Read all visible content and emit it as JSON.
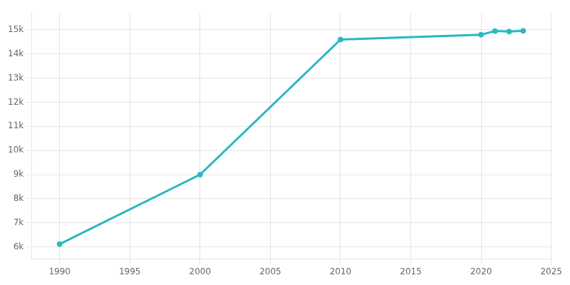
{
  "chart_data": {
    "type": "line",
    "x": [
      1990,
      2000,
      2010,
      2020,
      2021,
      2022,
      2023
    ],
    "values": [
      6120,
      9000,
      14600,
      14800,
      14950,
      14930,
      14960
    ],
    "color": "#29B8C1",
    "marker": "o",
    "xlim": [
      1988,
      2025
    ],
    "ylim": [
      5500,
      15700
    ],
    "xticks": [
      1990,
      1995,
      2000,
      2005,
      2010,
      2015,
      2020,
      2025
    ],
    "yticks": [
      {
        "value": 6000,
        "label": "6k"
      },
      {
        "value": 7000,
        "label": "7k"
      },
      {
        "value": 8000,
        "label": "8k"
      },
      {
        "value": 9000,
        "label": "9k"
      },
      {
        "value": 10000,
        "label": "10k"
      },
      {
        "value": 11000,
        "label": "11k"
      },
      {
        "value": 12000,
        "label": "12k"
      },
      {
        "value": 13000,
        "label": "13k"
      },
      {
        "value": 14000,
        "label": "14k"
      },
      {
        "value": 15000,
        "label": "15k"
      }
    ],
    "grid": true
  }
}
